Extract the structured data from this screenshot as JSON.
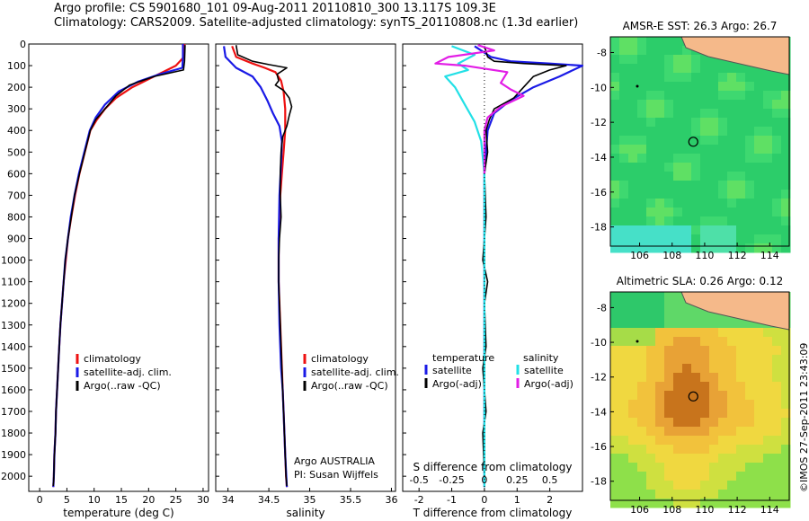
{
  "header": {
    "title_line1": "Argo profile: CS 5901680_101 09-Aug-2011 20110810_300 13.117S 109.3E",
    "title_line2": "Climatology: CARS2009. Satellite-adjusted climatology: synTS_20110808.nc (1.3d earlier)"
  },
  "footer": {
    "stamp": "©IMOS 27-Sep-2011 23:43:09"
  },
  "colors": {
    "climatology": "#ee1111",
    "satellite": "#1a1ae6",
    "argo": "#000000",
    "cyan": "#22e0e6",
    "magenta": "#e21ee6",
    "land": "#f5b98a"
  },
  "chart_data": [
    {
      "type": "line",
      "name": "temperature",
      "xlabel": "temperature (deg C)",
      "xlim": [
        -2,
        31
      ],
      "ylim": [
        2070,
        0
      ],
      "xticks": [
        0,
        5,
        10,
        15,
        20,
        25,
        30
      ],
      "yticks": [
        0,
        100,
        200,
        300,
        400,
        500,
        600,
        700,
        800,
        900,
        1000,
        1100,
        1200,
        1300,
        1400,
        1500,
        1600,
        1700,
        1800,
        1900,
        2000
      ],
      "legend": [
        "climatology",
        "satellite-adj. clim.",
        "Argo(..raw -QC)"
      ],
      "legend_position": "lower-left",
      "series": [
        {
          "name": "climatology",
          "color": "#ee1111",
          "points": [
            [
              26.6,
              0
            ],
            [
              26.5,
              60
            ],
            [
              25,
              100
            ],
            [
              21,
              150
            ],
            [
              17,
              200
            ],
            [
              14,
              250
            ],
            [
              12,
              300
            ],
            [
              10.5,
              350
            ],
            [
              9.3,
              400
            ],
            [
              8.3,
              500
            ],
            [
              7.3,
              600
            ],
            [
              6.5,
              700
            ],
            [
              5.8,
              800
            ],
            [
              5.2,
              900
            ],
            [
              4.8,
              1000
            ],
            [
              4.4,
              1100
            ],
            [
              4.1,
              1200
            ],
            [
              3.8,
              1300
            ],
            [
              3.6,
              1400
            ],
            [
              3.4,
              1500
            ],
            [
              3.2,
              1600
            ],
            [
              3,
              1700
            ],
            [
              2.9,
              1800
            ],
            [
              2.7,
              1900
            ],
            [
              2.6,
              2000
            ],
            [
              2.5,
              2050
            ]
          ]
        },
        {
          "name": "satellite-adj. clim.",
          "color": "#1a1ae6",
          "points": [
            [
              26.3,
              0
            ],
            [
              26.3,
              60
            ],
            [
              26.2,
              110
            ],
            [
              22,
              140
            ],
            [
              18,
              175
            ],
            [
              14.5,
              220
            ],
            [
              12,
              280
            ],
            [
              10.3,
              340
            ],
            [
              9.2,
              400
            ],
            [
              8.2,
              500
            ],
            [
              7.2,
              600
            ],
            [
              6.4,
              700
            ],
            [
              5.7,
              800
            ],
            [
              5.2,
              900
            ],
            [
              4.7,
              1000
            ],
            [
              4.4,
              1100
            ],
            [
              4.1,
              1200
            ],
            [
              3.8,
              1300
            ],
            [
              3.6,
              1400
            ],
            [
              3.4,
              1500
            ],
            [
              3.2,
              1600
            ],
            [
              3,
              1700
            ],
            [
              2.9,
              1800
            ],
            [
              2.7,
              1900
            ],
            [
              2.6,
              2000
            ],
            [
              2.5,
              2050
            ]
          ]
        },
        {
          "name": "Argo(..raw -QC)",
          "color": "#000000",
          "points": [
            [
              26.7,
              5
            ],
            [
              26.6,
              80
            ],
            [
              26.4,
              120
            ],
            [
              21,
              150
            ],
            [
              16.5,
              190
            ],
            [
              14,
              240
            ],
            [
              12,
              300
            ],
            [
              10.3,
              350
            ],
            [
              9.3,
              400
            ],
            [
              8.3,
              500
            ],
            [
              7.3,
              600
            ],
            [
              6.4,
              700
            ],
            [
              5.8,
              800
            ],
            [
              5.2,
              900
            ],
            [
              4.7,
              1000
            ],
            [
              4.4,
              1100
            ],
            [
              4.1,
              1200
            ],
            [
              3.8,
              1300
            ],
            [
              3.6,
              1400
            ],
            [
              3.4,
              1500
            ],
            [
              3.2,
              1600
            ],
            [
              3,
              1700
            ],
            [
              2.9,
              1800
            ],
            [
              2.7,
              1900
            ],
            [
              2.6,
              2000
            ],
            [
              2.5,
              2045
            ]
          ]
        }
      ]
    },
    {
      "type": "line",
      "name": "salinity",
      "xlabel": "salinity",
      "xlim": [
        33.85,
        36.05
      ],
      "ylim": [
        2070,
        0
      ],
      "xticks": [
        34,
        34.5,
        35,
        35.5,
        36
      ],
      "legend": [
        "climatology",
        "satellite-adj. clim.",
        "Argo(..raw -QC)"
      ],
      "legend_position": "lower-right",
      "annotation": [
        "Argo AUSTRALIA",
        "PI: Susan Wijffels"
      ],
      "series": [
        {
          "name": "climatology",
          "color": "#ee1111",
          "points": [
            [
              34.05,
              10
            ],
            [
              34.1,
              60
            ],
            [
              34.3,
              90
            ],
            [
              34.45,
              110
            ],
            [
              34.58,
              130
            ],
            [
              34.65,
              170
            ],
            [
              34.68,
              220
            ],
            [
              34.7,
              300
            ],
            [
              34.7,
              400
            ],
            [
              34.68,
              500
            ],
            [
              34.66,
              600
            ],
            [
              34.64,
              700
            ],
            [
              34.63,
              800
            ],
            [
              34.62,
              900
            ],
            [
              34.62,
              1000
            ],
            [
              34.62,
              1100
            ],
            [
              34.63,
              1200
            ],
            [
              34.64,
              1300
            ],
            [
              34.65,
              1400
            ],
            [
              34.66,
              1500
            ],
            [
              34.67,
              1600
            ],
            [
              34.68,
              1700
            ],
            [
              34.69,
              1800
            ],
            [
              34.7,
              1900
            ],
            [
              34.71,
              2000
            ],
            [
              34.72,
              2050
            ]
          ]
        },
        {
          "name": "satellite-adj. clim.",
          "color": "#1a1ae6",
          "points": [
            [
              33.95,
              10
            ],
            [
              33.97,
              60
            ],
            [
              34.1,
              110
            ],
            [
              34.3,
              150
            ],
            [
              34.4,
              200
            ],
            [
              34.48,
              260
            ],
            [
              34.55,
              320
            ],
            [
              34.63,
              380
            ],
            [
              34.66,
              450
            ],
            [
              34.65,
              550
            ],
            [
              34.63,
              700
            ],
            [
              34.62,
              900
            ],
            [
              34.62,
              1100
            ],
            [
              34.63,
              1300
            ],
            [
              34.65,
              1500
            ],
            [
              34.67,
              1600
            ],
            [
              34.69,
              1800
            ],
            [
              34.7,
              1900
            ],
            [
              34.72,
              2050
            ]
          ]
        },
        {
          "name": "Argo(..raw -QC)",
          "color": "#000000",
          "points": [
            [
              34.1,
              5
            ],
            [
              34.12,
              50
            ],
            [
              34.3,
              80
            ],
            [
              34.5,
              95
            ],
            [
              34.72,
              110
            ],
            [
              34.6,
              140
            ],
            [
              34.62,
              170
            ],
            [
              34.58,
              190
            ],
            [
              34.68,
              215
            ],
            [
              34.75,
              250
            ],
            [
              34.78,
              290
            ],
            [
              34.75,
              330
            ],
            [
              34.72,
              380
            ],
            [
              34.67,
              430
            ],
            [
              34.65,
              500
            ],
            [
              34.64,
              600
            ],
            [
              34.64,
              700
            ],
            [
              34.65,
              800
            ],
            [
              34.63,
              900
            ],
            [
              34.62,
              1000
            ],
            [
              34.62,
              1100
            ],
            [
              34.63,
              1200
            ],
            [
              34.64,
              1300
            ],
            [
              34.65,
              1400
            ],
            [
              34.66,
              1500
            ],
            [
              34.67,
              1600
            ],
            [
              34.68,
              1700
            ],
            [
              34.69,
              1800
            ],
            [
              34.7,
              1900
            ],
            [
              34.71,
              2000
            ],
            [
              34.72,
              2045
            ]
          ]
        }
      ]
    },
    {
      "type": "line",
      "name": "difference from climatology",
      "xlabel": "T difference from climatology",
      "top_axis_label": "S difference from climatology",
      "xlim": [
        -2.5,
        3
      ],
      "ylim": [
        2070,
        0
      ],
      "xticks": [
        -2,
        -1,
        0,
        1,
        2
      ],
      "top_ticks": [
        "-0.5",
        "-0.25",
        "0",
        "0.25",
        "0.5"
      ],
      "legend": [
        "temperature",
        "satellite",
        "Argo(-adj)",
        "salinity",
        "satellite",
        "Argo(-adj)"
      ],
      "legend_position": "lower",
      "series": [
        {
          "name": "satellite",
          "quantity": "temperature",
          "color": "#1a1ae6",
          "points": [
            [
              -0.3,
              10
            ],
            [
              0.2,
              60
            ],
            [
              0.8,
              80
            ],
            [
              2,
              90
            ],
            [
              3,
              100
            ],
            [
              2.3,
              150
            ],
            [
              1.5,
              200
            ],
            [
              0.8,
              260
            ],
            [
              0.3,
              320
            ],
            [
              0.1,
              400
            ],
            [
              0,
              600
            ],
            [
              0,
              1000
            ],
            [
              0,
              1500
            ],
            [
              0,
              2050
            ]
          ]
        },
        {
          "name": "Argo(-adj)",
          "quantity": "temperature",
          "color": "#000000",
          "points": [
            [
              0,
              10
            ],
            [
              0.1,
              60
            ],
            [
              0.3,
              80
            ],
            [
              1.2,
              90
            ],
            [
              2.5,
              100
            ],
            [
              2.0,
              120
            ],
            [
              1.5,
              150
            ],
            [
              1.2,
              200
            ],
            [
              0.9,
              250
            ],
            [
              0.3,
              300
            ],
            [
              0.15,
              350
            ],
            [
              0.05,
              400
            ],
            [
              0.1,
              500
            ],
            [
              0,
              600
            ],
            [
              0.05,
              800
            ],
            [
              -0.05,
              1000
            ],
            [
              0.1,
              1100
            ],
            [
              0,
              1200
            ],
            [
              0.05,
              1400
            ],
            [
              -0.05,
              1500
            ],
            [
              0,
              1600
            ],
            [
              0.05,
              1700
            ],
            [
              -0.05,
              1800
            ],
            [
              0,
              2000
            ],
            [
              0,
              2045
            ]
          ]
        },
        {
          "name": "satellite",
          "quantity": "salinity",
          "color": "#22e0e6",
          "points": [
            [
              -1,
              10
            ],
            [
              -0.3,
              50
            ],
            [
              -0.8,
              90
            ],
            [
              -0.5,
              120
            ],
            [
              -1.2,
              150
            ],
            [
              -0.9,
              200
            ],
            [
              -0.6,
              280
            ],
            [
              -0.3,
              360
            ],
            [
              -0.1,
              450
            ],
            [
              0,
              600
            ],
            [
              0,
              1000
            ],
            [
              0,
              2050
            ]
          ]
        },
        {
          "name": "Argo(-adj)",
          "quantity": "salinity",
          "color": "#e21ee6",
          "points": [
            [
              -0.2,
              5
            ],
            [
              0.3,
              30
            ],
            [
              -1.1,
              60
            ],
            [
              -1.5,
              90
            ],
            [
              -0.6,
              100
            ],
            [
              0.7,
              130
            ],
            [
              0.5,
              180
            ],
            [
              0.8,
              210
            ],
            [
              1.2,
              240
            ],
            [
              0.5,
              290
            ],
            [
              0.1,
              340
            ],
            [
              0,
              400
            ],
            [
              0,
              600
            ]
          ]
        }
      ]
    },
    {
      "type": "heatmap",
      "name": "sst-map",
      "title": "AMSR-E SST: 26.3 Argo: 26.7",
      "xticks": [
        106,
        108,
        110,
        112,
        114
      ],
      "yticks": [
        -8,
        -10,
        -12,
        -14,
        -16,
        -18
      ],
      "xlim": [
        104.2,
        115.2
      ],
      "ylim": [
        -19.1,
        -7.1
      ],
      "argo_position": [
        109.3,
        -13.117
      ]
    },
    {
      "type": "heatmap",
      "name": "sla-map",
      "title": "Altimetric SLA: 0.26 Argo: 0.12",
      "xticks": [
        106,
        108,
        110,
        112,
        114
      ],
      "yticks": [
        -8,
        -10,
        -12,
        -14,
        -16,
        -18
      ],
      "xlim": [
        104.2,
        115.2
      ],
      "ylim": [
        -19.1,
        -7.1
      ],
      "argo_position": [
        109.3,
        -13.117
      ]
    }
  ]
}
